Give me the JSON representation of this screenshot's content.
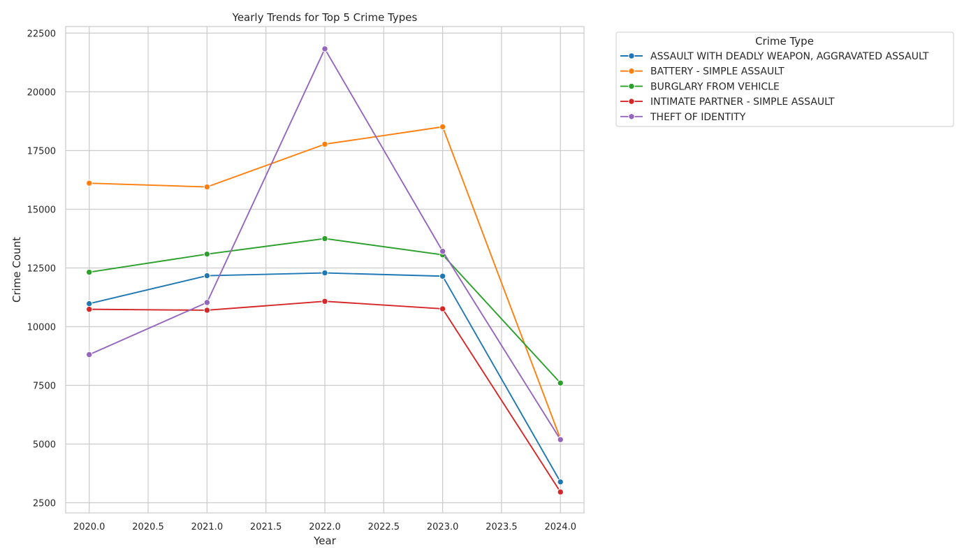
{
  "chart_data": {
    "type": "line",
    "title": "Yearly Trends for Top 5 Crime Types",
    "xlabel": "Year",
    "ylabel": "Crime Count",
    "x": [
      2020,
      2021,
      2022,
      2023,
      2024
    ],
    "xlim": [
      2019.8,
      2024.2
    ],
    "ylim": [
      2070,
      22780
    ],
    "xticks": [
      "2020.0",
      "2020.5",
      "2021.0",
      "2021.5",
      "2022.0",
      "2022.5",
      "2023.0",
      "2023.5",
      "2024.0"
    ],
    "yticks": [
      "2500",
      "5000",
      "7500",
      "10000",
      "12500",
      "15000",
      "17500",
      "20000",
      "22500"
    ],
    "grid": true,
    "markers": true,
    "legend": {
      "title": "Crime Type",
      "placement": "outside top-right"
    },
    "series": [
      {
        "name": "ASSAULT WITH DEADLY WEAPON, AGGRAVATED ASSAULT",
        "color": "#1f77b4",
        "values": [
          10980,
          12170,
          12290,
          12150,
          3390
        ]
      },
      {
        "name": "BATTERY - SIMPLE ASSAULT",
        "color": "#ff7f0e",
        "values": [
          16110,
          15950,
          17770,
          18510,
          5220
        ]
      },
      {
        "name": "BURGLARY FROM VEHICLE",
        "color": "#2ca02c",
        "values": [
          12320,
          13090,
          13750,
          13060,
          7600
        ]
      },
      {
        "name": "INTIMATE PARTNER - SIMPLE ASSAULT",
        "color": "#d62728",
        "values": [
          10740,
          10700,
          11080,
          10760,
          2960
        ]
      },
      {
        "name": "THEFT OF IDENTITY",
        "color": "#9467bd",
        "values": [
          8810,
          11030,
          21830,
          13210,
          5190
        ]
      }
    ]
  }
}
